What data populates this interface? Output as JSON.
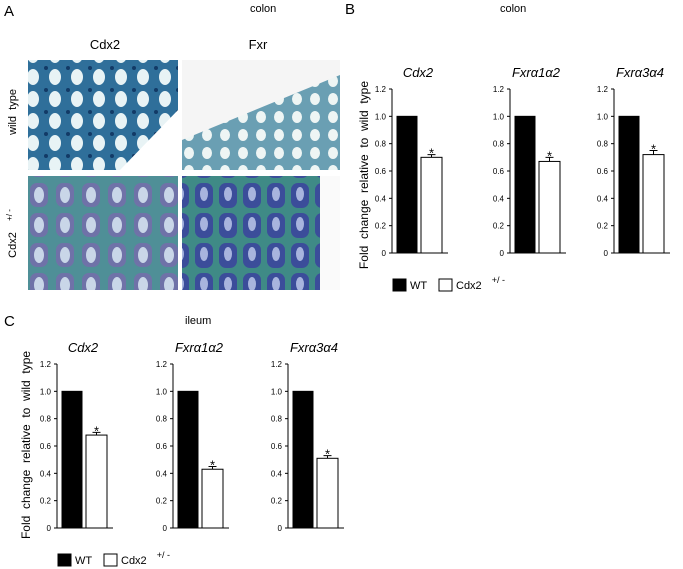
{
  "panels": {
    "A": {
      "label": "A",
      "title": "colon",
      "columns": [
        "Cdx2",
        "Fxr"
      ],
      "rows": [
        {
          "name": "wild  type"
        },
        {
          "name": "Cdx2",
          "superscript": "+/ -"
        }
      ]
    },
    "B": {
      "label": "B",
      "title": "colon",
      "ylabel": "Fold  change  relative  to  wild  type",
      "legend": [
        {
          "name": "WT",
          "color": "#000000"
        },
        {
          "name": "Cdx2",
          "superscript": "+/ -",
          "color": "#ffffff"
        }
      ]
    },
    "C": {
      "label": "C",
      "title": "ileum",
      "ylabel": "Fold  change  relative  to  wild  type",
      "legend": [
        {
          "name": "WT",
          "color": "#000000"
        },
        {
          "name": "Cdx2",
          "superscript": "+/ -",
          "color": "#ffffff"
        }
      ]
    }
  },
  "chart_data": [
    {
      "type": "bar",
      "title": "Cdx2",
      "categories": [
        null,
        null
      ],
      "values": [
        1.0,
        0.7
      ],
      "errors": [
        null,
        0.02
      ],
      "annotations": [
        null,
        "*"
      ],
      "colors": [
        "#000000",
        "#ffffff"
      ],
      "ylim": [
        0,
        1.2
      ],
      "yticks": [
        0,
        0.2,
        0.4,
        0.6,
        0.8,
        {
          "value": 1,
          "label": "1.0"
        },
        1.2
      ]
    },
    {
      "type": "bar",
      "title": "Fxrα1α2",
      "categories": [
        null,
        null
      ],
      "values": [
        1.0,
        0.67
      ],
      "errors": [
        null,
        0.03
      ],
      "annotations": [
        null,
        "*"
      ],
      "colors": [
        "#000000",
        "#ffffff"
      ],
      "ylim": [
        0,
        1.2
      ],
      "yticks": [
        0,
        0.2,
        0.4,
        0.6,
        0.8,
        {
          "value": 1,
          "label": "1.0"
        },
        1.2
      ]
    },
    {
      "type": "bar",
      "title": "Fxrα3α4",
      "categories": [
        null,
        null
      ],
      "values": [
        1.0,
        0.72
      ],
      "errors": [
        null,
        0.03
      ],
      "annotations": [
        null,
        "*"
      ],
      "colors": [
        "#000000",
        "#ffffff"
      ],
      "ylim": [
        0,
        1.2
      ],
      "yticks": [
        0,
        0.2,
        0.4,
        0.6,
        0.8,
        {
          "value": 1,
          "label": "1.0"
        },
        1.2
      ]
    },
    {
      "type": "bar",
      "title": "Cdx2",
      "categories": [
        null,
        null
      ],
      "values": [
        1.0,
        0.68
      ],
      "errors": [
        null,
        0.02
      ],
      "annotations": [
        null,
        "*"
      ],
      "colors": [
        "#000000",
        "#ffffff"
      ],
      "ylim": [
        0,
        1.2
      ],
      "yticks": [
        0,
        0.2,
        0.4,
        0.6,
        0.8,
        {
          "value": 1,
          "label": "1.0"
        },
        1.2
      ]
    },
    {
      "type": "bar",
      "title": "Fxrα1α2",
      "categories": [
        null,
        null
      ],
      "values": [
        1.0,
        0.43
      ],
      "errors": [
        null,
        0.02
      ],
      "annotations": [
        null,
        "*"
      ],
      "colors": [
        "#000000",
        "#ffffff"
      ],
      "ylim": [
        0,
        1.2
      ],
      "yticks": [
        0,
        0.2,
        0.4,
        0.6,
        0.8,
        {
          "value": 1,
          "label": "1.0"
        },
        1.2
      ]
    },
    {
      "type": "bar",
      "title": "Fxrα3α4",
      "categories": [
        null,
        null
      ],
      "values": [
        1.0,
        0.51
      ],
      "errors": [
        null,
        0.02
      ],
      "annotations": [
        null,
        "*"
      ],
      "colors": [
        "#000000",
        "#ffffff"
      ],
      "ylim": [
        0,
        1.2
      ],
      "yticks": [
        0,
        0.2,
        0.4,
        0.6,
        0.8,
        {
          "value": 1,
          "label": "1.0"
        },
        1.2
      ]
    }
  ]
}
